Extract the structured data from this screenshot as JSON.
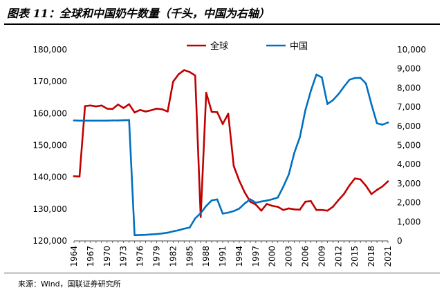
{
  "title": "图表 11：全球和中国奶牛数量（千头，中国为右轴）",
  "source": "来源：Wind，国联证券研究所",
  "chart_data": {
    "type": "line",
    "title": "图表 11：全球和中国奶牛数量（千头，中国为右轴）",
    "xlabel": "",
    "ylabel": "",
    "x_tick_labels": [
      "1964",
      "1967",
      "1970",
      "1973",
      "1976",
      "1979",
      "1982",
      "1985",
      "1988",
      "1991",
      "1994",
      "1997",
      "2000",
      "2003",
      "2006",
      "2009",
      "2012",
      "2015",
      "2018",
      "2021"
    ],
    "left_axis": {
      "ylim": [
        120000,
        180000
      ],
      "ticks": [
        120000,
        130000,
        140000,
        150000,
        160000,
        170000,
        180000
      ],
      "tick_labels": [
        "120,000",
        "130,000",
        "140,000",
        "150,000",
        "160,000",
        "170,000",
        "180,000"
      ]
    },
    "right_axis": {
      "ylim": [
        0,
        10000
      ],
      "ticks": [
        0,
        1000,
        2000,
        3000,
        4000,
        5000,
        6000,
        7000,
        8000,
        9000,
        10000
      ],
      "tick_labels": [
        "0",
        "1,000",
        "2,000",
        "3,000",
        "4,000",
        "5,000",
        "6,000",
        "7,000",
        "8,000",
        "9,000",
        "10,000"
      ]
    },
    "grid": false,
    "legend_position": "top-center",
    "x": [
      1964,
      1965,
      1966,
      1967,
      1968,
      1969,
      1970,
      1971,
      1972,
      1973,
      1974,
      1975,
      1976,
      1977,
      1978,
      1979,
      1980,
      1981,
      1982,
      1983,
      1984,
      1985,
      1986,
      1987,
      1988,
      1989,
      1990,
      1991,
      1992,
      1993,
      1994,
      1995,
      1996,
      1997,
      1998,
      1999,
      2000,
      2001,
      2002,
      2003,
      2004,
      2005,
      2006,
      2007,
      2008,
      2009,
      2010,
      2011,
      2012,
      2013,
      2014,
      2015,
      2016,
      2017,
      2018,
      2019,
      2020,
      2021
    ],
    "series": [
      {
        "name": "全球",
        "axis": "left",
        "color": "#c00000",
        "values": [
          140300,
          140200,
          162300,
          162500,
          162200,
          162500,
          161500,
          161400,
          162800,
          161700,
          162900,
          160300,
          161100,
          160600,
          161000,
          161500,
          161300,
          160600,
          170000,
          172300,
          173600,
          173000,
          171900,
          127500,
          166500,
          160500,
          160400,
          156700,
          159900,
          143500,
          138900,
          135200,
          132300,
          131400,
          129500,
          131600,
          131000,
          130700,
          129700,
          130200,
          129900,
          129800,
          132300,
          132500,
          129700,
          129700,
          129500,
          130700,
          132800,
          134700,
          137400,
          139600,
          139300,
          137300,
          134700,
          136000,
          137100,
          138700
        ]
      },
      {
        "name": "中国",
        "axis": "right",
        "color": "#0070c0",
        "values": [
          6300,
          6290,
          6290,
          6290,
          6290,
          6290,
          6290,
          6300,
          6300,
          6310,
          6320,
          300,
          310,
          320,
          340,
          360,
          390,
          430,
          500,
          560,
          640,
          700,
          1180,
          1450,
          1830,
          2120,
          2170,
          1430,
          1480,
          1560,
          1690,
          1960,
          2180,
          2000,
          2060,
          2110,
          2180,
          2270,
          2840,
          3480,
          4610,
          5420,
          6830,
          7850,
          8700,
          8550,
          7160,
          7360,
          7670,
          8060,
          8430,
          8520,
          8530,
          8230,
          7140,
          6150,
          6080,
          6190
        ]
      }
    ]
  }
}
